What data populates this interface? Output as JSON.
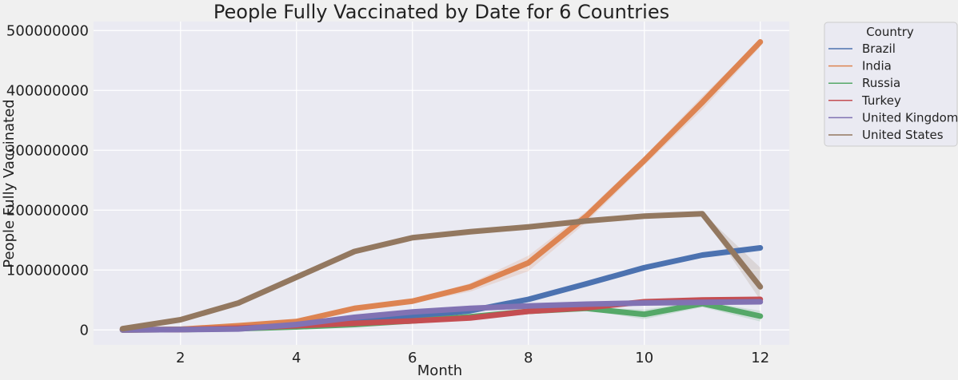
{
  "chart_data": {
    "type": "line",
    "title": "People Fully Vaccinated by Date for 6 Countries",
    "xlabel": "Month",
    "ylabel": "People Fully Vaccinated",
    "xlim": [
      0.5,
      12.5
    ],
    "ylim": [
      -25000000,
      515000000
    ],
    "xticks": [
      2,
      4,
      6,
      8,
      10,
      12
    ],
    "yticks": [
      0,
      100000000,
      200000000,
      300000000,
      400000000,
      500000000
    ],
    "grid": true,
    "legend": {
      "title": "Country",
      "placement": "outside-right"
    },
    "x": [
      1,
      2,
      3,
      4,
      5,
      6,
      7,
      8,
      9,
      10,
      11,
      12
    ],
    "series": [
      {
        "name": "Brazil",
        "color": "#4c72b0",
        "values": [
          0,
          1000000,
          4000000,
          7000000,
          16000000,
          22000000,
          32000000,
          51000000,
          77000000,
          104000000,
          125000000,
          137000000
        ],
        "band": [
          [
            0,
            0
          ],
          [
            0,
            2000000
          ],
          [
            3000000,
            5000000
          ],
          [
            6000000,
            8000000
          ],
          [
            15000000,
            17000000
          ],
          [
            21000000,
            23000000
          ],
          [
            31000000,
            33000000
          ],
          [
            49000000,
            53000000
          ],
          [
            75000000,
            79000000
          ],
          [
            102000000,
            106000000
          ],
          [
            123000000,
            127000000
          ],
          [
            135000000,
            139000000
          ]
        ]
      },
      {
        "name": "India",
        "color": "#dd8452",
        "values": [
          0,
          1000000,
          7000000,
          14000000,
          36000000,
          48000000,
          72000000,
          112000000,
          190000000,
          283000000,
          380000000,
          481000000
        ],
        "band": [
          [
            0,
            0
          ],
          [
            0,
            2000000
          ],
          [
            6000000,
            8000000
          ],
          [
            13000000,
            16000000
          ],
          [
            34000000,
            38000000
          ],
          [
            45000000,
            51000000
          ],
          [
            64000000,
            78000000
          ],
          [
            98000000,
            124000000
          ],
          [
            180000000,
            198000000
          ],
          [
            275000000,
            290000000
          ],
          [
            368000000,
            390000000
          ],
          [
            473000000,
            485000000
          ]
        ]
      },
      {
        "name": "Russia",
        "color": "#55a868",
        "values": [
          0,
          500000,
          2000000,
          5000000,
          9000000,
          15000000,
          22000000,
          31000000,
          36000000,
          26000000,
          44000000,
          23000000
        ],
        "band": [
          [
            0,
            0
          ],
          [
            0,
            1000000
          ],
          [
            1000000,
            3000000
          ],
          [
            4000000,
            6000000
          ],
          [
            8000000,
            10000000
          ],
          [
            14000000,
            16000000
          ],
          [
            21000000,
            23000000
          ],
          [
            29000000,
            33000000
          ],
          [
            33000000,
            38000000
          ],
          [
            18000000,
            34000000
          ],
          [
            38000000,
            48000000
          ],
          [
            14000000,
            32000000
          ]
        ]
      },
      {
        "name": "Turkey",
        "color": "#c44e52",
        "values": [
          0,
          500000,
          3000000,
          7000000,
          11000000,
          15000000,
          20000000,
          31000000,
          37000000,
          47000000,
          50000000,
          51000000
        ],
        "band": [
          [
            0,
            0
          ],
          [
            0,
            1000000
          ],
          [
            2000000,
            4000000
          ],
          [
            6000000,
            8000000
          ],
          [
            10000000,
            12000000
          ],
          [
            14000000,
            16000000
          ],
          [
            19000000,
            21000000
          ],
          [
            29000000,
            33000000
          ],
          [
            35000000,
            39000000
          ],
          [
            45000000,
            49000000
          ],
          [
            48000000,
            52000000
          ],
          [
            49000000,
            53000000
          ]
        ]
      },
      {
        "name": "United Kingdom",
        "color": "#8172b3",
        "values": [
          0,
          500000,
          1500000,
          9000000,
          21000000,
          30000000,
          36000000,
          40000000,
          43000000,
          45000000,
          46000000,
          47000000
        ],
        "band": [
          [
            0,
            0
          ],
          [
            0,
            1000000
          ],
          [
            1000000,
            2000000
          ],
          [
            8000000,
            10000000
          ],
          [
            20000000,
            22000000
          ],
          [
            29000000,
            31000000
          ],
          [
            35000000,
            37000000
          ],
          [
            39000000,
            41000000
          ],
          [
            42000000,
            44000000
          ],
          [
            44000000,
            46000000
          ],
          [
            45000000,
            47000000
          ],
          [
            46000000,
            48000000
          ]
        ]
      },
      {
        "name": "United States",
        "color": "#937860",
        "values": [
          2000000,
          17000000,
          45000000,
          88000000,
          131000000,
          154000000,
          164000000,
          172000000,
          182000000,
          190000000,
          194000000,
          72000000
        ],
        "band": [
          [
            1000000,
            3000000
          ],
          [
            16000000,
            18000000
          ],
          [
            44000000,
            46000000
          ],
          [
            85000000,
            91000000
          ],
          [
            129000000,
            133000000
          ],
          [
            152000000,
            156000000
          ],
          [
            162000000,
            166000000
          ],
          [
            170000000,
            174000000
          ],
          [
            180000000,
            184000000
          ],
          [
            188000000,
            192000000
          ],
          [
            192000000,
            196000000
          ],
          [
            50000000,
            104000000
          ]
        ]
      }
    ]
  }
}
